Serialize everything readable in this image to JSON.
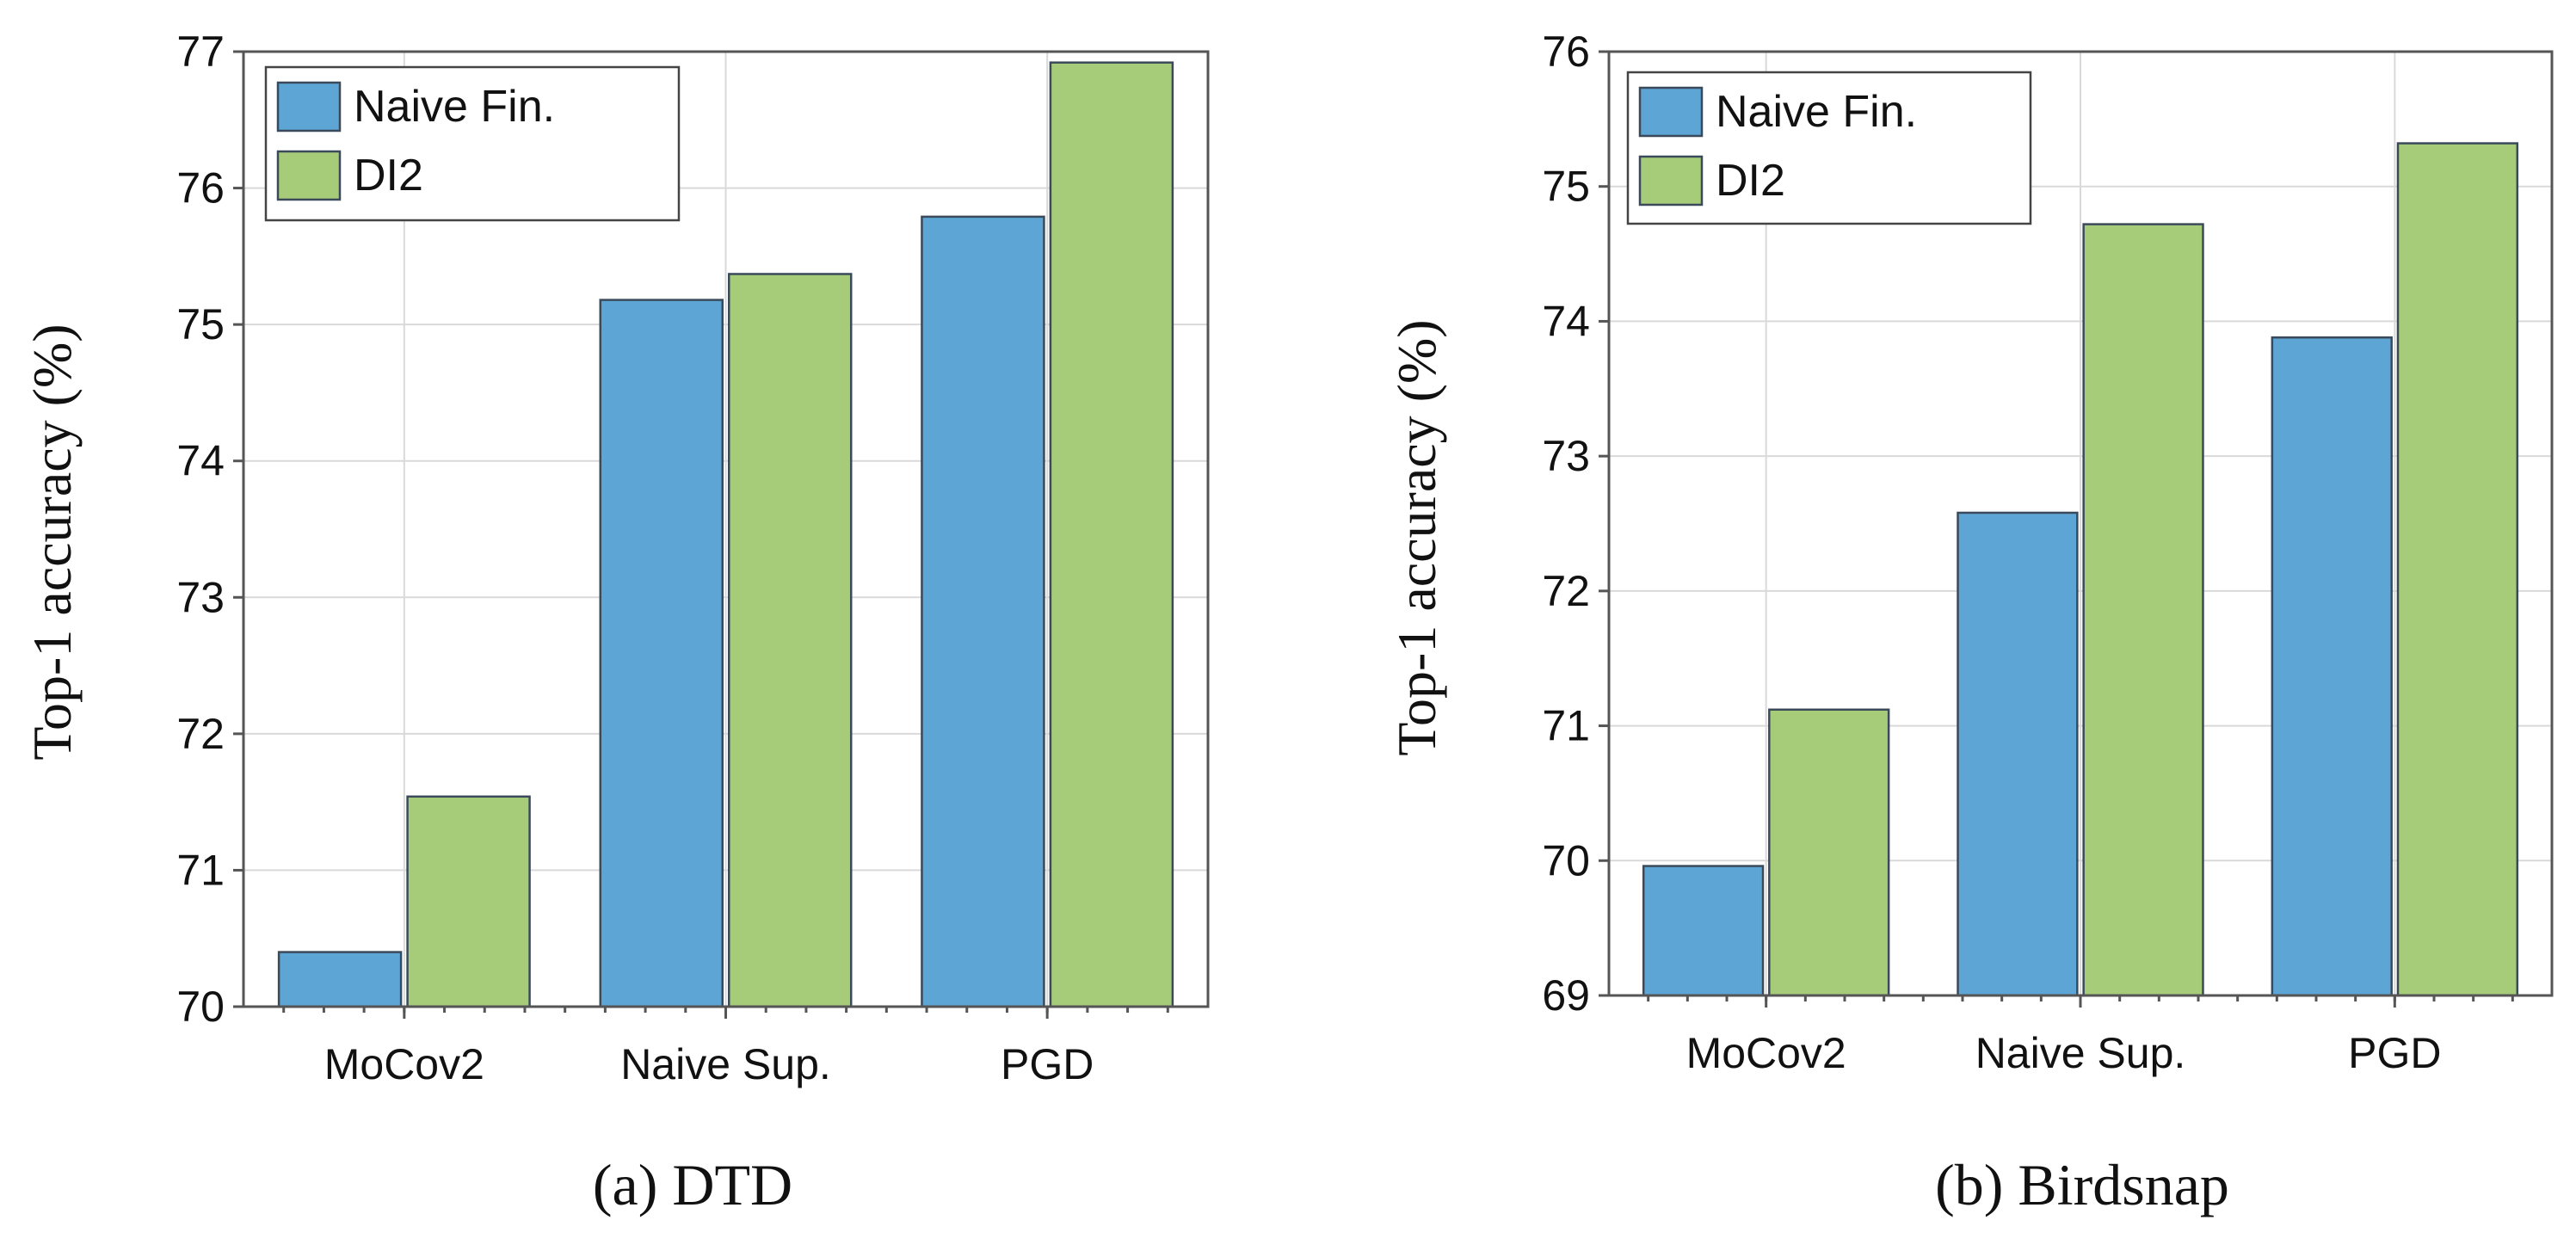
{
  "chart_data": [
    {
      "type": "bar",
      "title": "",
      "caption": "(a) DTD",
      "xlabel": "",
      "ylabel": "Top-1 accuracy (%)",
      "categories": [
        "MoCov2",
        "Naive Sup.",
        "PGD"
      ],
      "series": [
        {
          "name": "Naive Fin.",
          "color": "#5da5d5",
          "values": [
            70.4,
            75.18,
            75.79
          ]
        },
        {
          "name": "DI2",
          "color": "#a7cc79",
          "values": [
            71.54,
            75.37,
            76.92
          ]
        }
      ],
      "ylim": [
        70,
        77
      ],
      "yticks": [
        "70",
        "71",
        "72",
        "73",
        "74",
        "75",
        "76",
        "77"
      ],
      "grid": true,
      "legend_position": "top-left"
    },
    {
      "type": "bar",
      "title": "",
      "caption": "(b) Birdsnap",
      "xlabel": "",
      "ylabel": "Top-1 accuracy (%)",
      "categories": [
        "MoCov2",
        "Naive Sup.",
        "PGD"
      ],
      "series": [
        {
          "name": "Naive Fin.",
          "color": "#5da5d5",
          "values": [
            69.96,
            72.58,
            73.88
          ]
        },
        {
          "name": "DI2",
          "color": "#a7cc79",
          "values": [
            71.12,
            74.72,
            75.32
          ]
        }
      ],
      "ylim": [
        69,
        76
      ],
      "yticks": [
        "69",
        "70",
        "71",
        "72",
        "73",
        "74",
        "75",
        "76"
      ],
      "grid": true,
      "legend_position": "top-left"
    }
  ]
}
